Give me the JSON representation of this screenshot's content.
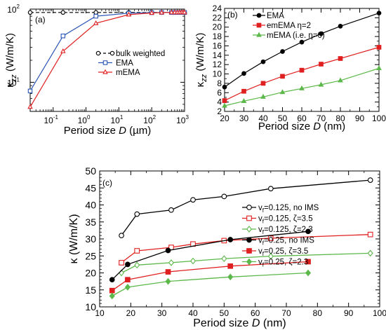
{
  "chart_data": [
    {
      "panel_label": "(a)",
      "type": "line",
      "xlabel_parts": [
        "Period size ",
        "D",
        " (µm)"
      ],
      "ylabel_main": "κ",
      "ylabel_sub": "zz",
      "ylabel_unit": " (W/m/K)",
      "xscale": "log",
      "yscale": "log",
      "xlim": [
        0.02,
        1000
      ],
      "ylim": [
        4,
        100
      ],
      "x_ticks": [
        {
          "v": 0.1,
          "base": "10",
          "exp": "-1"
        },
        {
          "v": 1,
          "base": "10",
          "exp": "0"
        },
        {
          "v": 10,
          "base": "10",
          "exp": "1"
        },
        {
          "v": 100,
          "base": "10",
          "exp": "2"
        },
        {
          "v": 1000,
          "base": "10",
          "exp": "3"
        }
      ],
      "y_ticks": [
        {
          "v": 10,
          "base": "10",
          "exp": "1"
        },
        {
          "v": 100,
          "base": "10",
          "exp": "2"
        }
      ],
      "legend_position": "center-right",
      "series": [
        {
          "name": "bulk weighted",
          "color": "#000000",
          "marker": "circle-open",
          "dashed": true,
          "x": [
            0.02,
            0.2,
            2,
            20,
            100,
            200,
            400,
            500,
            600,
            700,
            800,
            900,
            1000
          ],
          "y": [
            90,
            90,
            90,
            90,
            90,
            90,
            90,
            90,
            90,
            90,
            90,
            90,
            90
          ]
        },
        {
          "name": "EMA",
          "color": "#2a55b5",
          "marker": "square-open",
          "dashed": false,
          "x": [
            0.02,
            0.2,
            2,
            20,
            100,
            200,
            400,
            500,
            600,
            700,
            800,
            900,
            1000
          ],
          "y": [
            7.6,
            43,
            80,
            88,
            89.5,
            90,
            90,
            90,
            90,
            90,
            90,
            90,
            90
          ]
        },
        {
          "name": "mEMA",
          "color": "#e02020",
          "marker": "triangle-open",
          "dashed": false,
          "x": [
            0.02,
            0.2,
            2,
            20,
            100,
            200,
            400,
            500,
            600,
            700,
            800,
            900,
            1000
          ],
          "y": [
            4.6,
            26.5,
            64,
            84,
            88.5,
            89.5,
            90,
            90,
            90,
            90,
            90,
            90,
            90
          ]
        }
      ]
    },
    {
      "panel_label": "(b)",
      "type": "line",
      "xlabel_parts": [
        "Period size ",
        "D",
        " (nm)"
      ],
      "ylabel_main": "κ",
      "ylabel_sub": "zz",
      "ylabel_unit": " (W/m/K)",
      "xlim": [
        20,
        100
      ],
      "ylim": [
        2,
        24
      ],
      "x_ticks": [
        20,
        30,
        40,
        50,
        60,
        70,
        80,
        90,
        100
      ],
      "y_ticks": [
        2,
        4,
        6,
        8,
        10,
        12,
        14,
        16,
        18,
        20,
        22,
        24
      ],
      "legend_position": "top-left",
      "series": [
        {
          "name": "EMA",
          "color": "#000000",
          "marker": "circle",
          "x": [
            20,
            30,
            40,
            50,
            60,
            70,
            80,
            100
          ],
          "y": [
            7.2,
            10.1,
            12.6,
            14.8,
            16.8,
            18.6,
            20.2,
            23.0
          ]
        },
        {
          "name": "emEMA  η=2",
          "color": "#e02020",
          "marker": "square",
          "x": [
            20,
            30,
            40,
            50,
            60,
            70,
            80,
            100
          ],
          "y": [
            4.3,
            6.3,
            8.0,
            9.5,
            10.8,
            12.1,
            13.3,
            15.7
          ]
        },
        {
          "name": "mEMA   (i.e. η=0)",
          "color": "#5cb84a",
          "marker": "triangle",
          "x": [
            20,
            30,
            40,
            50,
            60,
            70,
            80,
            100
          ],
          "y": [
            3.2,
            4.2,
            5.1,
            6.1,
            6.9,
            7.7,
            8.6,
            11.2
          ]
        }
      ]
    },
    {
      "panel_label": "(c)",
      "type": "line",
      "xlabel_parts": [
        "Period size ",
        "D",
        " (nm)"
      ],
      "ylabel_main": "κ",
      "ylabel_unit": " (W/m/K)",
      "xlim": [
        10,
        100
      ],
      "ylim": [
        10,
        50
      ],
      "x_ticks": [
        10,
        20,
        30,
        40,
        50,
        60,
        70,
        80,
        90,
        100
      ],
      "y_ticks": [
        10,
        15,
        20,
        25,
        30,
        35,
        40,
        45,
        50
      ],
      "legend_position": "center-right",
      "series": [
        {
          "name_parts": [
            "v",
            "f",
            "=0.125, no IMS"
          ],
          "color": "#000000",
          "marker": "circle-open",
          "x": [
            17,
            22,
            33,
            40,
            50,
            65,
            97
          ],
          "y": [
            31,
            37.3,
            38.5,
            41.5,
            42.5,
            44.8,
            47.3
          ]
        },
        {
          "name_parts": [
            "v",
            "f",
            "=0.125, ζ=3.5"
          ],
          "color": "#e02020",
          "marker": "square-open",
          "x": [
            17,
            22,
            33,
            40,
            50,
            65,
            97
          ],
          "y": [
            23,
            26.5,
            27.5,
            28.5,
            29.5,
            30.2,
            31.3
          ]
        },
        {
          "name_parts": [
            "v",
            "f",
            "=0.125, ζ=2.3"
          ],
          "color": "#5cb84a",
          "marker": "diamond-open",
          "x": [
            17,
            22,
            33,
            40,
            50,
            65,
            97
          ],
          "y": [
            20,
            22.3,
            23,
            23.5,
            24.2,
            24.9,
            25.8
          ]
        },
        {
          "name_parts": [
            "v",
            "f",
            "=0.25, no IMS"
          ],
          "color": "#000000",
          "marker": "circle",
          "x": [
            14,
            19,
            32,
            52,
            77
          ],
          "y": [
            18,
            22.5,
            26.6,
            29.8,
            32.2
          ]
        },
        {
          "name_parts": [
            "v",
            "f",
            "=0.25, ζ=3.5"
          ],
          "color": "#e02020",
          "marker": "square",
          "x": [
            14,
            19,
            32,
            52,
            77
          ],
          "y": [
            14.8,
            18,
            20.3,
            22,
            23.3
          ]
        },
        {
          "name_parts": [
            "v",
            "f",
            "=0.25, ζ=2.3"
          ],
          "color": "#5cb84a",
          "marker": "diamond",
          "x": [
            14,
            19,
            32,
            52,
            77
          ],
          "y": [
            13.2,
            15.8,
            17.5,
            18.8,
            20
          ]
        }
      ]
    }
  ]
}
